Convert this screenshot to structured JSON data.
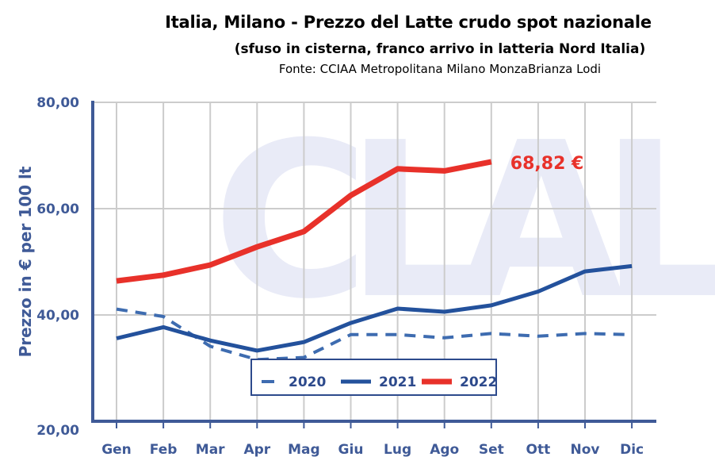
{
  "header": {
    "title": "Italia, Milano - Prezzo del Latte crudo spot nazionale",
    "subtitle": "(sfuso in cisterna, franco arrivo in latteria Nord Italia)",
    "source": "Fonte: CCIAA Metropolitana Milano MonzaBrianza Lodi"
  },
  "watermark": "CLAL",
  "chart_data": {
    "type": "line",
    "title": "Italia, Milano - Prezzo del Latte crudo spot nazionale",
    "subtitle": "(sfuso in cisterna, franco arrivo in latteria Nord Italia)",
    "xlabel": "",
    "ylabel": "Prezzo in € per 100 lt",
    "ylim": [
      20,
      80
    ],
    "yticks": [
      20,
      40,
      60,
      80
    ],
    "ytick_labels": [
      "20,00",
      "40,00",
      "60,00",
      "80,00"
    ],
    "grid": true,
    "legend": "bottom-center",
    "categories": [
      "Gen",
      "Feb",
      "Mar",
      "Apr",
      "Mag",
      "Giu",
      "Lug",
      "Ago",
      "Set",
      "Ott",
      "Nov",
      "Dic"
    ],
    "series": [
      {
        "name": "2020",
        "color": "#3e6cb0",
        "style": "dashed",
        "values": [
          41.1,
          39.7,
          34.1,
          31.6,
          32.0,
          36.3,
          36.3,
          35.7,
          36.5,
          36.0,
          36.5,
          36.3
        ]
      },
      {
        "name": "2021",
        "color": "#23519c",
        "style": "solid",
        "values": [
          35.6,
          37.7,
          35.2,
          33.3,
          34.9,
          38.5,
          41.2,
          40.6,
          41.8,
          44.4,
          48.2,
          49.2
        ]
      },
      {
        "name": "2022",
        "color": "#e8312a",
        "style": "solid-thick",
        "values": [
          46.4,
          47.5,
          49.4,
          52.8,
          55.7,
          62.5,
          67.5,
          67.1,
          68.82,
          null,
          null,
          null
        ]
      }
    ],
    "annotations": [
      {
        "series": "2022",
        "category": "Set",
        "text": "68,82 €"
      }
    ],
    "colors": {
      "axis": "#3f5a97",
      "grid": "#cccccc",
      "watermark": "#e9ebf7"
    }
  }
}
